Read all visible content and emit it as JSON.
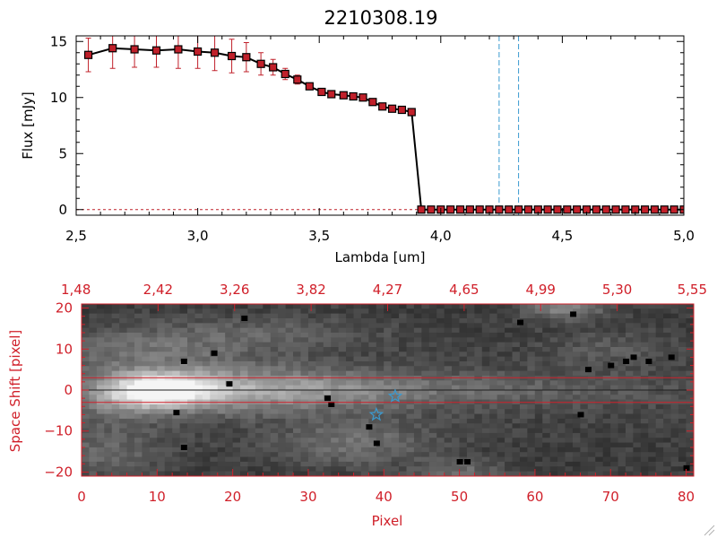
{
  "chart_data": [
    {
      "type": "line",
      "title": "2210308.19",
      "xlabel": "Lambda [um]",
      "ylabel": "Flux [mJy]",
      "xlim": [
        2.5,
        5.0
      ],
      "ylim": [
        -0.5,
        15.5
      ],
      "x_ticks": [
        "2.5",
        "3.0",
        "3.5",
        "4.0",
        "4.5",
        "5.0"
      ],
      "y_ticks": [
        "0",
        "5",
        "10",
        "15"
      ],
      "series": [
        {
          "name": "flux",
          "color": "#000000",
          "marker_color": "#c0202a",
          "x": [
            2.55,
            2.65,
            2.74,
            2.83,
            2.92,
            3.0,
            3.07,
            3.14,
            3.2,
            3.26,
            3.31,
            3.36,
            3.41,
            3.46,
            3.51,
            3.55,
            3.6,
            3.64,
            3.68,
            3.72,
            3.76,
            3.8,
            3.84,
            3.88,
            3.92,
            3.96,
            4.0,
            4.04,
            4.08,
            4.12,
            4.16,
            4.2,
            4.24,
            4.28,
            4.32,
            4.36,
            4.4,
            4.44,
            4.48,
            4.52,
            4.56,
            4.6,
            4.64,
            4.68,
            4.72,
            4.76,
            4.8,
            4.84,
            4.88,
            4.92,
            4.96,
            5.0
          ],
          "y": [
            13.8,
            14.4,
            14.3,
            14.2,
            14.3,
            14.1,
            14.0,
            13.7,
            13.6,
            13.0,
            12.7,
            12.1,
            11.6,
            11.0,
            10.5,
            10.3,
            10.2,
            10.1,
            10.0,
            9.6,
            9.2,
            9.0,
            8.9,
            8.7,
            0,
            0,
            0,
            0,
            0,
            0,
            0,
            0,
            0,
            0,
            0,
            0,
            0,
            0,
            0,
            0,
            0,
            0,
            0,
            0,
            0,
            0,
            0,
            0,
            0,
            0,
            0,
            0
          ],
          "yerr": [
            1.5,
            1.8,
            1.6,
            1.5,
            1.7,
            1.5,
            1.6,
            1.5,
            1.3,
            1.0,
            0.7,
            0.5,
            0.4,
            0.3,
            0.3,
            0.2,
            0.2,
            0.2,
            0.2,
            0.3,
            0.2,
            0.2,
            0.2,
            0.2,
            0,
            0,
            0,
            0,
            0,
            0,
            0,
            0,
            0,
            0,
            0,
            0,
            0,
            0,
            0,
            0,
            0,
            0,
            0,
            0,
            0,
            0,
            0,
            0,
            0,
            0,
            0,
            0
          ]
        }
      ],
      "vlines": [
        4.24,
        4.32
      ],
      "vline_color": "#3a9ad0"
    },
    {
      "type": "heatmap",
      "xlabel": "Pixel",
      "ylabel": "Space Shift [pixel]",
      "xlim": [
        0,
        81
      ],
      "ylim": [
        -21,
        21
      ],
      "x_ticks": [
        "0",
        "10",
        "20",
        "30",
        "40",
        "50",
        "60",
        "70",
        "80"
      ],
      "y_ticks": [
        "-20",
        "-10",
        "0",
        "10",
        "20"
      ],
      "top_ticks": [
        "1.48",
        "2.42",
        "3.26",
        "3.82",
        "4.27",
        "4.65",
        "4.99",
        "5.30",
        "5.55"
      ],
      "axis_color": "#d0202a",
      "hlines": [
        3.0,
        0.0,
        -3.0
      ],
      "stars": [
        [
          41.5,
          -1.5
        ],
        [
          39.0,
          -6.0
        ]
      ],
      "star_color": "#3a9ad0",
      "colormap": "gray"
    }
  ]
}
